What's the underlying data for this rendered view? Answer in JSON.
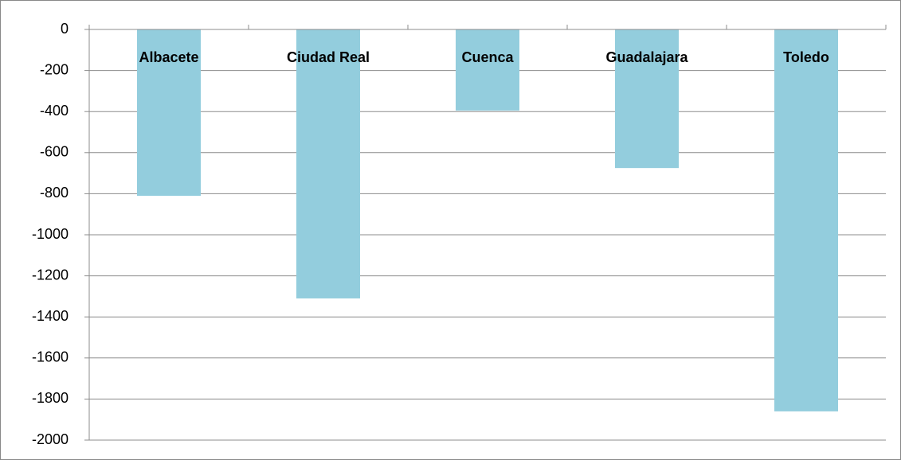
{
  "chart_data": {
    "type": "bar",
    "categories": [
      "Albacete",
      "Ciudad Real",
      "Cuenca",
      "Guadalajara",
      "Toledo"
    ],
    "values": [
      -810,
      -1310,
      -395,
      -675,
      -1860
    ],
    "color": "#93cddd",
    "ylim": [
      -2000,
      0
    ],
    "yticks": [
      0,
      -200,
      -400,
      -600,
      -800,
      -1000,
      -1200,
      -1400,
      -1600,
      -1800,
      -2000
    ],
    "grid": true
  }
}
